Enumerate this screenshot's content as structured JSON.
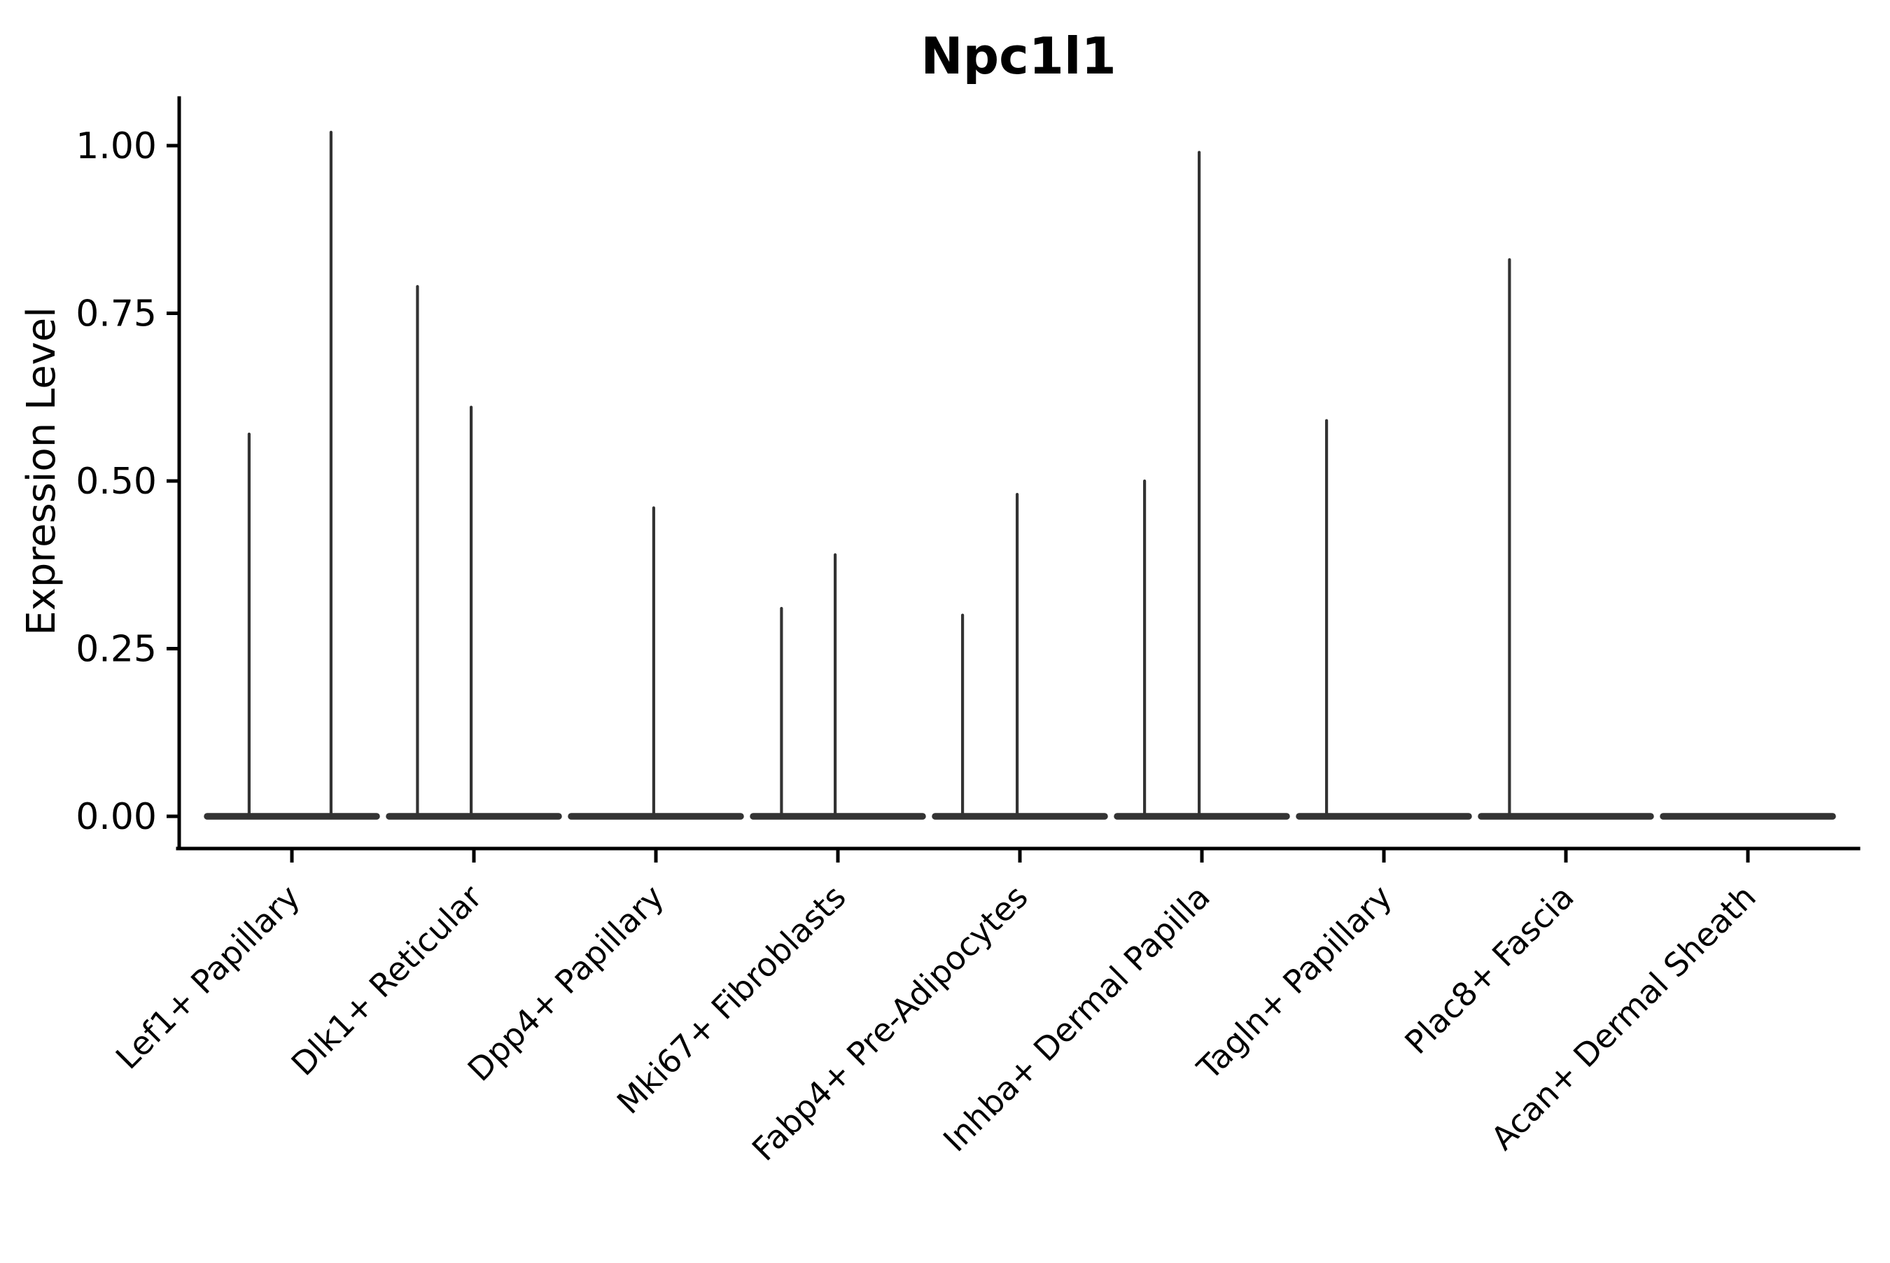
{
  "chart_data": {
    "type": "violin",
    "title": "Npc1l1",
    "ylabel": "Expression Level",
    "xlabel": "",
    "ylim": [
      -0.05,
      1.07
    ],
    "grid": false,
    "legend": "none",
    "yticks": [
      {
        "value": 0.0,
        "label": "0.00"
      },
      {
        "value": 0.25,
        "label": "0.25"
      },
      {
        "value": 0.5,
        "label": "0.50"
      },
      {
        "value": 0.75,
        "label": "0.75"
      },
      {
        "value": 1.0,
        "label": "1.00"
      }
    ],
    "categories": [
      "Lef1+ Papillary",
      "Dlk1+ Reticular",
      "Dpp4+ Papillary",
      "Mki67+ Fibroblasts",
      "Fabp4+ Pre-Adipocytes",
      "Inhba+ Dermal Papilla",
      "Tagln+ Papillary",
      "Plac8+ Fascia",
      "Acan+ Dermal Sheath"
    ],
    "series": [
      {
        "category": "Lef1+ Papillary",
        "baseline_value": 0.0,
        "spikes": [
          {
            "offset": -0.235,
            "value": 0.57
          },
          {
            "offset": 0.215,
            "value": 1.02
          }
        ]
      },
      {
        "category": "Dlk1+ Reticular",
        "baseline_value": 0.0,
        "spikes": [
          {
            "offset": -0.31,
            "value": 0.79
          },
          {
            "offset": -0.015,
            "value": 0.61
          }
        ]
      },
      {
        "category": "Dpp4+ Papillary",
        "baseline_value": 0.0,
        "spikes": [
          {
            "offset": -0.012,
            "value": 0.46
          }
        ]
      },
      {
        "category": "Mki67+ Fibroblasts",
        "baseline_value": 0.0,
        "spikes": [
          {
            "offset": -0.31,
            "value": 0.31
          },
          {
            "offset": -0.015,
            "value": 0.39
          }
        ]
      },
      {
        "category": "Fabp4+ Pre-Adipocytes",
        "baseline_value": 0.0,
        "spikes": [
          {
            "offset": -0.315,
            "value": 0.3
          },
          {
            "offset": -0.015,
            "value": 0.48
          }
        ]
      },
      {
        "category": "Inhba+ Dermal Papilla",
        "baseline_value": 0.0,
        "spikes": [
          {
            "offset": -0.315,
            "value": 0.5
          },
          {
            "offset": -0.015,
            "value": 0.99
          }
        ]
      },
      {
        "category": "Tagln+ Papillary",
        "baseline_value": 0.0,
        "spikes": [
          {
            "offset": -0.315,
            "value": 0.59
          }
        ]
      },
      {
        "category": "Plac8+ Fascia",
        "baseline_value": 0.0,
        "spikes": [
          {
            "offset": -0.31,
            "value": 0.83
          }
        ]
      },
      {
        "category": "Acan+ Dermal Sheath",
        "baseline_value": 0.0,
        "spikes": []
      }
    ],
    "colors": {
      "violin": "#333333",
      "axis": "#000000",
      "text": "#000000",
      "background": "#ffffff"
    },
    "layout_hints": {
      "x_tick_rotation_deg": 45,
      "violin_style": "flat zero-density line with thin vertical spikes to max expression"
    }
  }
}
